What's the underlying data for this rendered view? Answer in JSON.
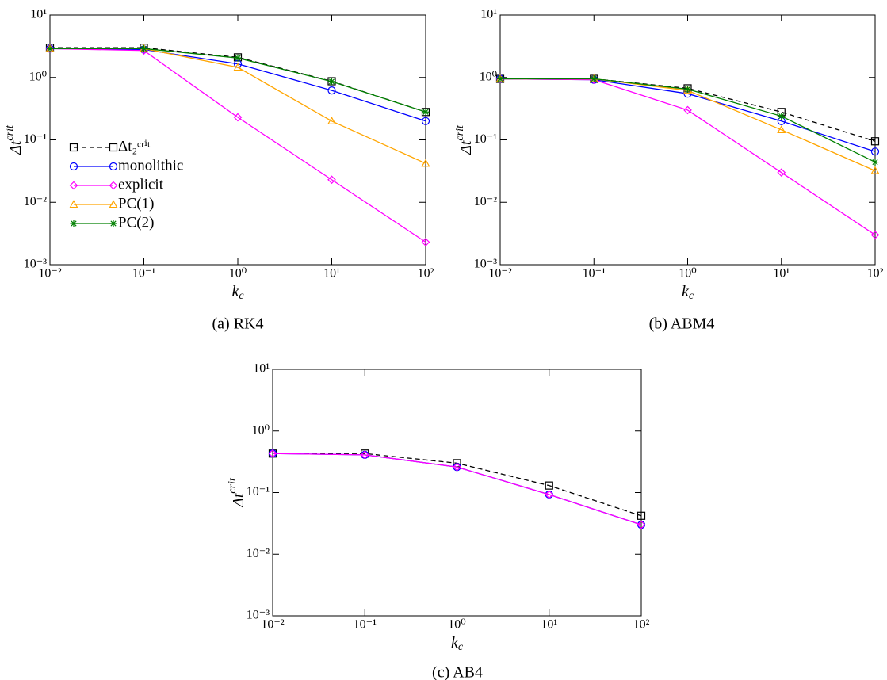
{
  "chart_data": [
    {
      "type": "line",
      "caption": "(a) RK4",
      "log_x": true,
      "log_y": true,
      "xlabel": {
        "text": "k",
        "subscript": "c"
      },
      "ylabel": {
        "text": "Δt",
        "superscript": "crit"
      },
      "x": [
        0.01,
        0.1,
        1,
        10,
        100
      ],
      "xlim": [
        0.01,
        100
      ],
      "ylim": [
        0.001,
        10
      ],
      "xticks": [
        {
          "value": 0.01,
          "label": "10⁻²"
        },
        {
          "value": 0.1,
          "label": "10⁻¹"
        },
        {
          "value": 1,
          "label": "10⁰"
        },
        {
          "value": 10,
          "label": "10¹"
        },
        {
          "value": 100,
          "label": "10²"
        }
      ],
      "yticks": [
        {
          "value": 0.001,
          "label": "10⁻³"
        },
        {
          "value": 0.01,
          "label": "10⁻²"
        },
        {
          "value": 0.1,
          "label": "10⁻¹"
        },
        {
          "value": 1,
          "label": "10⁰"
        },
        {
          "value": 10,
          "label": "10¹"
        }
      ],
      "legend": "left",
      "series": [
        {
          "name": "Δt₂ᶜʳⁱᵗ",
          "color": "#000000",
          "marker": "square",
          "dashed": true,
          "values": [
            3.0,
            3.0,
            2.1,
            0.87,
            0.28
          ]
        },
        {
          "name": "monolithic",
          "color": "#0000ff",
          "marker": "circle",
          "dashed": false,
          "values": [
            2.9,
            2.8,
            1.65,
            0.62,
            0.2
          ]
        },
        {
          "name": "explicit",
          "color": "#ff00ff",
          "marker": "diamond",
          "dashed": false,
          "values": [
            2.9,
            2.7,
            0.23,
            0.023,
            0.0023
          ]
        },
        {
          "name": "PC(1)",
          "color": "#ffa500",
          "marker": "triangle",
          "dashed": false,
          "values": [
            2.9,
            2.9,
            1.45,
            0.2,
            0.042
          ]
        },
        {
          "name": "PC(2)",
          "color": "#008000",
          "marker": "star",
          "dashed": false,
          "values": [
            2.9,
            2.9,
            2.05,
            0.86,
            0.28
          ]
        }
      ]
    },
    {
      "type": "line",
      "caption": "(b) ABM4",
      "log_x": true,
      "log_y": true,
      "xlabel": {
        "text": "k",
        "subscript": "c"
      },
      "ylabel": {
        "text": "Δt",
        "superscript": "crit"
      },
      "x": [
        0.01,
        0.1,
        1,
        10,
        100
      ],
      "xlim": [
        0.01,
        100
      ],
      "ylim": [
        0.001,
        10
      ],
      "xticks": [
        {
          "value": 0.01,
          "label": "10⁻²"
        },
        {
          "value": 0.1,
          "label": "10⁻¹"
        },
        {
          "value": 1,
          "label": "10⁰"
        },
        {
          "value": 10,
          "label": "10¹"
        },
        {
          "value": 100,
          "label": "10²"
        }
      ],
      "yticks": [
        {
          "value": 0.001,
          "label": "10⁻³"
        },
        {
          "value": 0.01,
          "label": "10⁻²"
        },
        {
          "value": 0.1,
          "label": "10⁻¹"
        },
        {
          "value": 1,
          "label": "10⁰"
        },
        {
          "value": 10,
          "label": "10¹"
        }
      ],
      "series": [
        {
          "color": "#000000",
          "marker": "square",
          "dashed": true,
          "values": [
            0.95,
            0.95,
            0.67,
            0.28,
            0.095
          ]
        },
        {
          "color": "#0000ff",
          "marker": "circle",
          "dashed": false,
          "values": [
            0.95,
            0.92,
            0.55,
            0.2,
            0.065
          ]
        },
        {
          "color": "#ff00ff",
          "marker": "diamond",
          "dashed": false,
          "values": [
            0.95,
            0.92,
            0.3,
            0.03,
            0.003
          ]
        },
        {
          "color": "#ffa500",
          "marker": "triangle",
          "dashed": false,
          "values": [
            0.95,
            0.95,
            0.62,
            0.145,
            0.032
          ]
        },
        {
          "color": "#008000",
          "marker": "star",
          "dashed": false,
          "values": [
            0.95,
            0.95,
            0.65,
            0.24,
            0.044
          ]
        }
      ]
    },
    {
      "type": "line",
      "caption": "(c) AB4",
      "log_x": true,
      "log_y": true,
      "xlabel": {
        "text": "k",
        "subscript": "c"
      },
      "ylabel": {
        "text": "Δt",
        "superscript": "crit"
      },
      "x": [
        0.01,
        0.1,
        1,
        10,
        100
      ],
      "xlim": [
        0.01,
        100
      ],
      "ylim": [
        0.001,
        10
      ],
      "xticks": [
        {
          "value": 0.01,
          "label": "10⁻²"
        },
        {
          "value": 0.1,
          "label": "10⁻¹"
        },
        {
          "value": 1,
          "label": "10⁰"
        },
        {
          "value": 10,
          "label": "10¹"
        },
        {
          "value": 100,
          "label": "10²"
        }
      ],
      "yticks": [
        {
          "value": 0.001,
          "label": "10⁻³"
        },
        {
          "value": 0.01,
          "label": "10⁻²"
        },
        {
          "value": 0.1,
          "label": "10⁻¹"
        },
        {
          "value": 1,
          "label": "10⁰"
        },
        {
          "value": 10,
          "label": "10¹"
        }
      ],
      "series": [
        {
          "color": "#000000",
          "marker": "square",
          "dashed": true,
          "values": [
            0.43,
            0.43,
            0.3,
            0.13,
            0.042
          ]
        },
        {
          "color": "#0000ff",
          "marker": "circle",
          "dashed": false,
          "values": [
            0.43,
            0.41,
            0.26,
            0.093,
            0.03
          ]
        },
        {
          "color": "#ff00ff",
          "marker": "diamond",
          "dashed": false,
          "values": [
            0.43,
            0.41,
            0.26,
            0.093,
            0.03
          ]
        }
      ]
    }
  ]
}
